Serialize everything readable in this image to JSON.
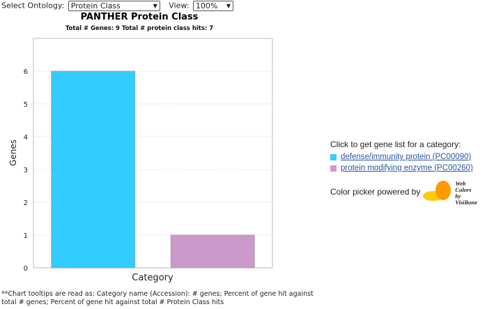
{
  "controls": {
    "ontology_label": "Select Ontology:",
    "ontology_value": "Protein Class",
    "view_label": "View:",
    "view_value": "100%"
  },
  "legend": {
    "heading": "Click to get gene list for a category:",
    "items": [
      {
        "label": "defense/immunity protein (PC00090)",
        "color": "#33ccff"
      },
      {
        "label": "protein modifying enzyme (PC00260)",
        "color": "#cc99cc"
      }
    ],
    "credit_text": "Color picker powered by",
    "logo_text": [
      "Web",
      "Colors by",
      "VisiBone"
    ]
  },
  "footnote": "**Chart tooltips are read as: Category name (Accession): # genes; Percent of gene hit against total # genes; Percent of gene hit against total # Protein Class hits",
  "chart_data": {
    "type": "bar",
    "title": "PANTHER Protein Class",
    "subtitle": "Total # Genes: 9    Total # protein class hits: 7",
    "xlabel": "Category",
    "ylabel": "Genes",
    "ylim": [
      0,
      7
    ],
    "yticks": [
      0,
      1,
      2,
      3,
      4,
      5,
      6
    ],
    "grid": true,
    "categories": [
      "defense/immunity protein (PC00090)",
      "protein modifying enzyme (PC00260)"
    ],
    "values": [
      6,
      1
    ],
    "colors": [
      "#33ccff",
      "#cc99cc"
    ]
  }
}
